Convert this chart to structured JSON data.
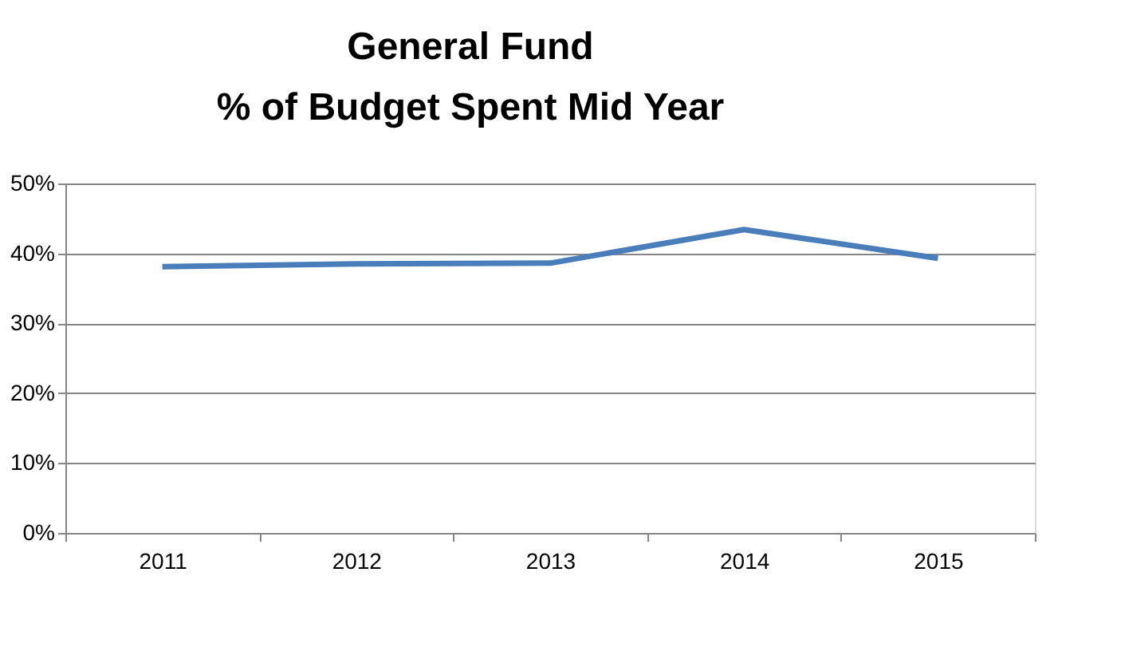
{
  "chart_data": {
    "type": "line",
    "title": "General Fund\n% of Budget Spent Mid Year",
    "categories": [
      "2011",
      "2012",
      "2013",
      "2014",
      "2015"
    ],
    "series": [
      {
        "color": "#4a7ebb",
        "values": [
          38.1,
          38.5,
          38.6,
          43.4,
          39.3
        ]
      }
    ],
    "ylim": [
      0,
      50
    ],
    "yticks": [
      {
        "value": 0,
        "label": "0%"
      },
      {
        "value": 10,
        "label": "10%"
      },
      {
        "value": 20,
        "label": "20%"
      },
      {
        "value": 30,
        "label": "30%"
      },
      {
        "value": 40,
        "label": "40%"
      },
      {
        "value": 50,
        "label": "50%"
      }
    ],
    "grid": "y",
    "legend": false,
    "marker": "none",
    "line_style": "solid"
  }
}
